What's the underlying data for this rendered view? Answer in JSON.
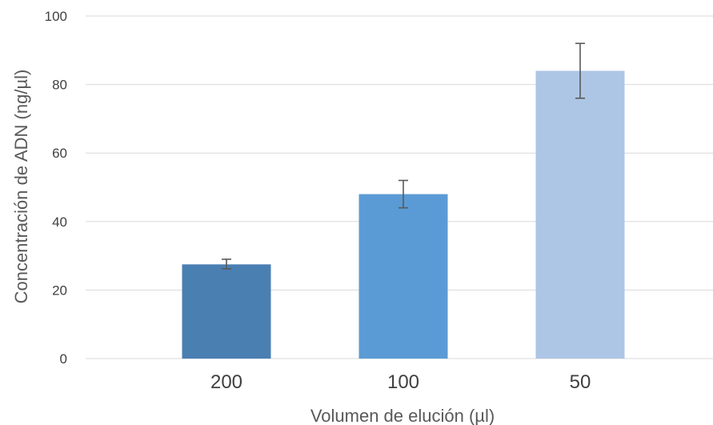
{
  "chart_data": {
    "type": "bar",
    "title": "",
    "xlabel": "Volumen de elución (µl)",
    "ylabel": "Concentración de ADN (ng/µl)",
    "categories": [
      "200",
      "100",
      "50"
    ],
    "values": [
      27.5,
      48,
      84
    ],
    "error_low": [
      26.2,
      44,
      76
    ],
    "error_high": [
      29,
      52,
      92
    ],
    "colors": [
      "#4a7fb2",
      "#5b9bd5",
      "#adc6e5"
    ],
    "error_bar_color": "#595959",
    "ylim": [
      0,
      100
    ],
    "yticks": [
      0,
      20,
      40,
      60,
      80,
      100
    ],
    "grid": true,
    "grid_color": "#d9d9d9"
  }
}
